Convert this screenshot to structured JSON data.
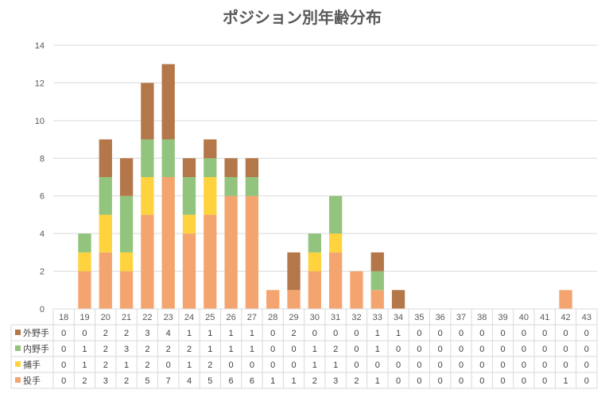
{
  "chart_data": {
    "type": "bar",
    "stacked": true,
    "title": "ポジション別年齢分布",
    "xlabel": "",
    "ylabel": "",
    "ylim": [
      0,
      14
    ],
    "yticks": [
      0,
      2,
      4,
      6,
      8,
      10,
      12,
      14
    ],
    "grid": true,
    "legend": "data-table-left",
    "categories": [
      "18",
      "19",
      "20",
      "21",
      "22",
      "23",
      "24",
      "25",
      "26",
      "27",
      "28",
      "29",
      "30",
      "31",
      "32",
      "33",
      "34",
      "35",
      "36",
      "37",
      "38",
      "39",
      "40",
      "41",
      "42",
      "43"
    ],
    "series": [
      {
        "name": "投手",
        "color": "#F4A56F",
        "values": [
          0,
          2,
          3,
          2,
          5,
          7,
          4,
          5,
          6,
          6,
          1,
          1,
          2,
          3,
          2,
          1,
          0,
          0,
          0,
          0,
          0,
          0,
          0,
          0,
          1,
          0
        ]
      },
      {
        "name": "捕手",
        "color": "#FFD33D",
        "values": [
          0,
          1,
          2,
          1,
          2,
          0,
          1,
          2,
          0,
          0,
          0,
          0,
          1,
          1,
          0,
          0,
          0,
          0,
          0,
          0,
          0,
          0,
          0,
          0,
          0,
          0
        ]
      },
      {
        "name": "内野手",
        "color": "#93C47D",
        "values": [
          0,
          1,
          2,
          3,
          2,
          2,
          2,
          1,
          1,
          1,
          0,
          0,
          1,
          2,
          0,
          1,
          0,
          0,
          0,
          0,
          0,
          0,
          0,
          0,
          0,
          0
        ]
      },
      {
        "name": "外野手",
        "color": "#B3774A",
        "values": [
          0,
          0,
          2,
          2,
          3,
          4,
          1,
          1,
          1,
          1,
          0,
          2,
          0,
          0,
          0,
          1,
          1,
          0,
          0,
          0,
          0,
          0,
          0,
          0,
          0,
          0
        ]
      }
    ],
    "table_order": [
      "外野手",
      "内野手",
      "捕手",
      "投手"
    ]
  }
}
